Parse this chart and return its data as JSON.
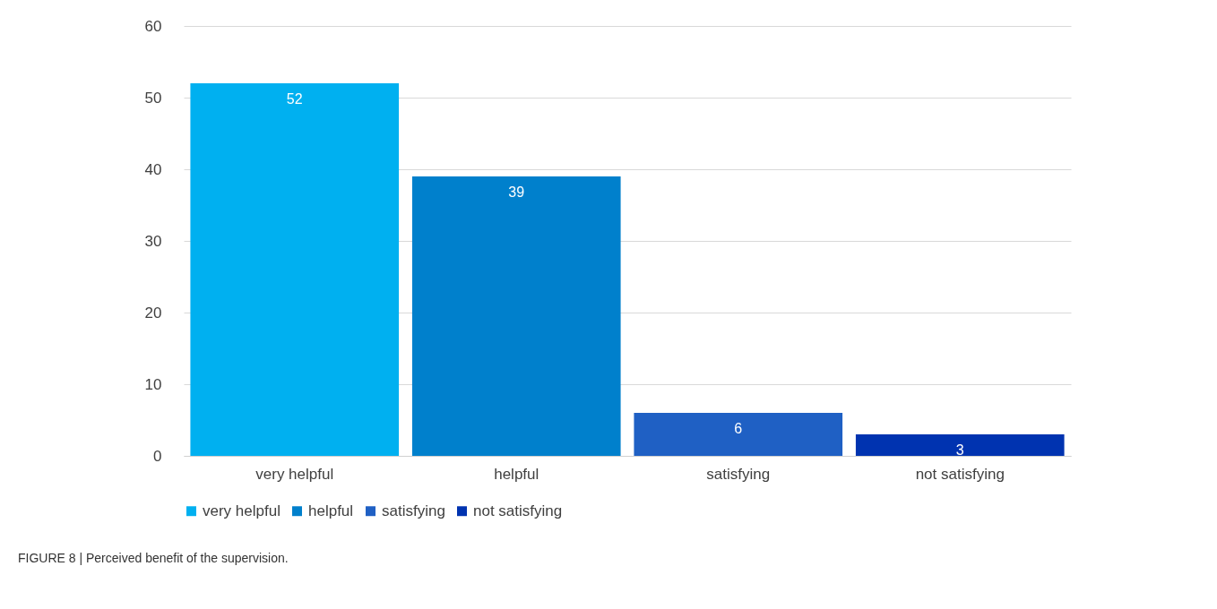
{
  "chart_data": {
    "type": "bar",
    "categories": [
      "very helpful",
      "helpful",
      "satisfying",
      "not satisfying"
    ],
    "series": [
      {
        "name": "very helpful",
        "color": "#00b0f0",
        "values": [
          52,
          null,
          null,
          null
        ]
      },
      {
        "name": "helpful",
        "color": "#0080cc",
        "values": [
          null,
          39,
          null,
          null
        ]
      },
      {
        "name": "satisfying",
        "color": "#1f60c4",
        "values": [
          null,
          null,
          6,
          null
        ]
      },
      {
        "name": "not satisfying",
        "color": "#0033b0",
        "values": [
          null,
          null,
          null,
          3
        ]
      }
    ],
    "ylim": [
      0,
      60
    ],
    "yticks": [
      0,
      10,
      20,
      30,
      40,
      50,
      60
    ],
    "grid": "y",
    "legend": "bottom",
    "data_labels": true,
    "annotations": [
      "FIGURE 8 | Perceived benefit of the supervision."
    ]
  }
}
